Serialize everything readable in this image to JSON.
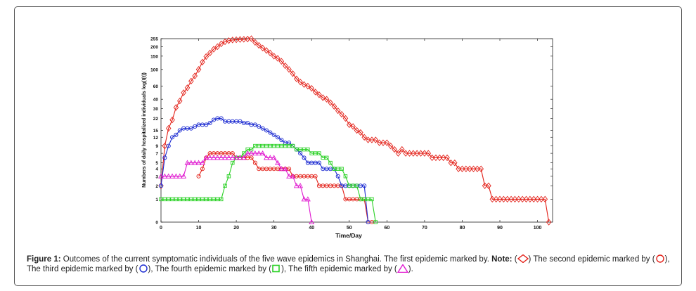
{
  "chart_data": {
    "type": "line",
    "xlabel": "Time/Day",
    "ylabel": "Numbers of daily hospitalized individuals log(I(t))",
    "y_scale": "log(1+y)",
    "xlim": [
      0,
      104
    ],
    "x_ticks": [
      0,
      10,
      20,
      30,
      40,
      50,
      60,
      70,
      80,
      90,
      100
    ],
    "y_ticks": [
      0,
      1,
      2,
      3,
      4,
      5,
      7,
      9,
      12,
      15,
      22,
      30,
      40,
      60,
      100,
      150,
      200,
      255
    ],
    "grid": false,
    "series": [
      {
        "color": "#e32119",
        "marker": "diamond",
        "points": [
          [
            0,
            2
          ],
          [
            1,
            9
          ],
          [
            2,
            16
          ],
          [
            3,
            21
          ],
          [
            4,
            31
          ],
          [
            5,
            38
          ],
          [
            6,
            49
          ],
          [
            7,
            57
          ],
          [
            8,
            70
          ],
          [
            9,
            82
          ],
          [
            10,
            100
          ],
          [
            11,
            125
          ],
          [
            12,
            148
          ],
          [
            13,
            165
          ],
          [
            14,
            185
          ],
          [
            15,
            200
          ],
          [
            16,
            218
          ],
          [
            17,
            232
          ],
          [
            18,
            240
          ],
          [
            19,
            245
          ],
          [
            20,
            247
          ],
          [
            21,
            249
          ],
          [
            22,
            250
          ],
          [
            23,
            252
          ],
          [
            24,
            255
          ],
          [
            25,
            228
          ],
          [
            26,
            208
          ],
          [
            27,
            192
          ],
          [
            28,
            178
          ],
          [
            29,
            165
          ],
          [
            30,
            150
          ],
          [
            31,
            140
          ],
          [
            32,
            128
          ],
          [
            33,
            112
          ],
          [
            34,
            100
          ],
          [
            35,
            88
          ],
          [
            36,
            75
          ],
          [
            37,
            68
          ],
          [
            38,
            63
          ],
          [
            39,
            60
          ],
          [
            40,
            56
          ],
          [
            41,
            50
          ],
          [
            42,
            46
          ],
          [
            43,
            42
          ],
          [
            44,
            40
          ],
          [
            45,
            36
          ],
          [
            46,
            32
          ],
          [
            47,
            28
          ],
          [
            48,
            25
          ],
          [
            49,
            22
          ],
          [
            50,
            18
          ],
          [
            51,
            17
          ],
          [
            52,
            15
          ],
          [
            53,
            14
          ],
          [
            54,
            12
          ],
          [
            55,
            11
          ],
          [
            56,
            11
          ],
          [
            57,
            11
          ],
          [
            58,
            10
          ],
          [
            59,
            10
          ],
          [
            60,
            10
          ],
          [
            61,
            9
          ],
          [
            62,
            8
          ],
          [
            63,
            7
          ],
          [
            64,
            8
          ],
          [
            65,
            7
          ],
          [
            66,
            7
          ],
          [
            67,
            7
          ],
          [
            68,
            7
          ],
          [
            69,
            7
          ],
          [
            70,
            7
          ],
          [
            71,
            7
          ],
          [
            72,
            6
          ],
          [
            73,
            6
          ],
          [
            74,
            6
          ],
          [
            75,
            6
          ],
          [
            76,
            6
          ],
          [
            77,
            5
          ],
          [
            78,
            5
          ],
          [
            79,
            4
          ],
          [
            80,
            4
          ],
          [
            81,
            4
          ],
          [
            82,
            4
          ],
          [
            83,
            4
          ],
          [
            84,
            4
          ],
          [
            85,
            4
          ],
          [
            86,
            2
          ],
          [
            87,
            2
          ],
          [
            88,
            1
          ],
          [
            89,
            1
          ],
          [
            90,
            1
          ],
          [
            91,
            1
          ],
          [
            92,
            1
          ],
          [
            93,
            1
          ],
          [
            94,
            1
          ],
          [
            95,
            1
          ],
          [
            96,
            1
          ],
          [
            97,
            1
          ],
          [
            98,
            1
          ],
          [
            99,
            1
          ],
          [
            100,
            1
          ],
          [
            101,
            1
          ],
          [
            102,
            1
          ],
          [
            103,
            0
          ]
        ]
      },
      {
        "color": "#e32119",
        "marker": "circle",
        "points": [
          [
            10,
            3
          ],
          [
            11,
            4
          ],
          [
            12,
            6
          ],
          [
            13,
            7
          ],
          [
            14,
            7
          ],
          [
            15,
            7
          ],
          [
            16,
            7
          ],
          [
            17,
            7
          ],
          [
            18,
            7
          ],
          [
            19,
            7
          ],
          [
            20,
            6
          ],
          [
            21,
            6
          ],
          [
            22,
            6
          ],
          [
            23,
            6
          ],
          [
            24,
            6
          ],
          [
            25,
            5
          ],
          [
            26,
            4
          ],
          [
            27,
            4
          ],
          [
            28,
            4
          ],
          [
            29,
            4
          ],
          [
            30,
            4
          ],
          [
            31,
            4
          ],
          [
            32,
            4
          ],
          [
            33,
            4
          ],
          [
            34,
            4
          ],
          [
            35,
            3
          ],
          [
            36,
            3
          ],
          [
            37,
            3
          ],
          [
            38,
            3
          ],
          [
            39,
            3
          ],
          [
            40,
            3
          ],
          [
            41,
            3
          ],
          [
            42,
            2
          ],
          [
            43,
            2
          ],
          [
            44,
            2
          ],
          [
            45,
            2
          ],
          [
            46,
            2
          ],
          [
            47,
            2
          ],
          [
            48,
            2
          ],
          [
            49,
            1
          ],
          [
            50,
            1
          ],
          [
            51,
            1
          ],
          [
            52,
            1
          ],
          [
            53,
            1
          ],
          [
            54,
            1
          ],
          [
            55,
            0
          ],
          [
            56,
            0
          ]
        ]
      },
      {
        "color": "#1c2bd1",
        "marker": "circle",
        "points": [
          [
            0,
            2
          ],
          [
            1,
            6
          ],
          [
            2,
            9
          ],
          [
            3,
            12
          ],
          [
            4,
            13
          ],
          [
            5,
            15
          ],
          [
            6,
            16
          ],
          [
            7,
            16
          ],
          [
            8,
            16
          ],
          [
            9,
            17
          ],
          [
            10,
            18
          ],
          [
            11,
            18
          ],
          [
            12,
            18
          ],
          [
            13,
            19
          ],
          [
            14,
            21
          ],
          [
            15,
            22
          ],
          [
            16,
            22
          ],
          [
            17,
            20
          ],
          [
            18,
            20
          ],
          [
            19,
            20
          ],
          [
            20,
            20
          ],
          [
            21,
            20
          ],
          [
            22,
            19
          ],
          [
            23,
            19
          ],
          [
            24,
            18
          ],
          [
            25,
            18
          ],
          [
            26,
            17
          ],
          [
            27,
            16
          ],
          [
            28,
            15
          ],
          [
            29,
            14
          ],
          [
            30,
            13
          ],
          [
            31,
            12
          ],
          [
            32,
            11
          ],
          [
            33,
            10
          ],
          [
            34,
            10
          ],
          [
            35,
            9
          ],
          [
            36,
            8
          ],
          [
            37,
            7
          ],
          [
            38,
            6
          ],
          [
            39,
            5
          ],
          [
            40,
            5
          ],
          [
            41,
            5
          ],
          [
            42,
            5
          ],
          [
            43,
            4
          ],
          [
            44,
            4
          ],
          [
            45,
            4
          ],
          [
            46,
            4
          ],
          [
            47,
            3
          ],
          [
            48,
            2
          ],
          [
            49,
            2
          ],
          [
            50,
            2
          ],
          [
            51,
            2
          ],
          [
            52,
            2
          ],
          [
            53,
            2
          ],
          [
            54,
            2
          ],
          [
            55,
            0
          ]
        ]
      },
      {
        "color": "#2bd126",
        "marker": "square",
        "points": [
          [
            0,
            1
          ],
          [
            1,
            1
          ],
          [
            2,
            1
          ],
          [
            3,
            1
          ],
          [
            4,
            1
          ],
          [
            5,
            1
          ],
          [
            6,
            1
          ],
          [
            7,
            1
          ],
          [
            8,
            1
          ],
          [
            9,
            1
          ],
          [
            10,
            1
          ],
          [
            11,
            1
          ],
          [
            12,
            1
          ],
          [
            13,
            1
          ],
          [
            14,
            1
          ],
          [
            15,
            1
          ],
          [
            16,
            1
          ],
          [
            17,
            2
          ],
          [
            18,
            3
          ],
          [
            19,
            5
          ],
          [
            20,
            6
          ],
          [
            21,
            6
          ],
          [
            22,
            7
          ],
          [
            23,
            8
          ],
          [
            24,
            8
          ],
          [
            25,
            9
          ],
          [
            26,
            9
          ],
          [
            27,
            9
          ],
          [
            28,
            9
          ],
          [
            29,
            9
          ],
          [
            30,
            9
          ],
          [
            31,
            9
          ],
          [
            32,
            9
          ],
          [
            33,
            9
          ],
          [
            34,
            9
          ],
          [
            35,
            9
          ],
          [
            36,
            8
          ],
          [
            37,
            8
          ],
          [
            38,
            8
          ],
          [
            39,
            8
          ],
          [
            40,
            7
          ],
          [
            41,
            7
          ],
          [
            42,
            7
          ],
          [
            43,
            6
          ],
          [
            44,
            6
          ],
          [
            45,
            5
          ],
          [
            46,
            4
          ],
          [
            47,
            4
          ],
          [
            48,
            4
          ],
          [
            49,
            3
          ],
          [
            50,
            2
          ],
          [
            51,
            2
          ],
          [
            52,
            2
          ],
          [
            53,
            1
          ],
          [
            54,
            1
          ],
          [
            55,
            1
          ],
          [
            56,
            1
          ],
          [
            57,
            0
          ]
        ]
      },
      {
        "color": "#e01ad0",
        "marker": "triangle",
        "points": [
          [
            0,
            3
          ],
          [
            1,
            3
          ],
          [
            2,
            3
          ],
          [
            3,
            3
          ],
          [
            4,
            3
          ],
          [
            5,
            3
          ],
          [
            6,
            3
          ],
          [
            7,
            5
          ],
          [
            8,
            5
          ],
          [
            9,
            5
          ],
          [
            10,
            5
          ],
          [
            11,
            5
          ],
          [
            12,
            6
          ],
          [
            13,
            6
          ],
          [
            14,
            6
          ],
          [
            15,
            6
          ],
          [
            16,
            6
          ],
          [
            17,
            6
          ],
          [
            18,
            6
          ],
          [
            19,
            6
          ],
          [
            20,
            6
          ],
          [
            21,
            6
          ],
          [
            22,
            6
          ],
          [
            23,
            7
          ],
          [
            24,
            7
          ],
          [
            25,
            7
          ],
          [
            26,
            7
          ],
          [
            27,
            7
          ],
          [
            28,
            6
          ],
          [
            29,
            6
          ],
          [
            30,
            6
          ],
          [
            31,
            5
          ],
          [
            32,
            4
          ],
          [
            33,
            4
          ],
          [
            34,
            3
          ],
          [
            35,
            3
          ],
          [
            36,
            2
          ],
          [
            37,
            2
          ],
          [
            38,
            1
          ],
          [
            39,
            1
          ],
          [
            40,
            0
          ]
        ]
      }
    ]
  },
  "caption": {
    "label": "Figure 1:",
    "text1": " Outcomes of the current symptomatic individuals of the five wave epidemics in Shanghai. The first epidemic marked by. ",
    "note": "Note:",
    "p1a": " (",
    "p1b": ") The second epidemic marked by (",
    "p2b": "),",
    "p3a": "The third epidemic marked by (",
    "p3b": "), The fourth epidemic marked by (",
    "p4b": "), The fifth epidemic marked by (",
    "p5b": ")."
  }
}
